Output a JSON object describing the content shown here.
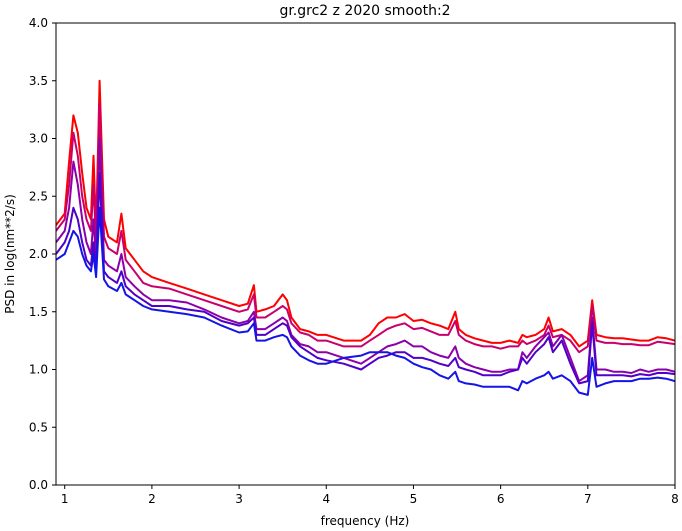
{
  "chart_data": {
    "type": "line",
    "title": "gr.grc2 z 2020 smooth:2",
    "xlabel": "frequency (Hz)",
    "ylabel": "PSD in log(nm**2/s)",
    "xlim": [
      0.9,
      8.0
    ],
    "ylim": [
      0.0,
      4.0
    ],
    "xticks": [
      "1",
      "2",
      "3",
      "4",
      "5",
      "6",
      "7",
      "8"
    ],
    "yticks": [
      "0.0",
      "0.5",
      "1.0",
      "1.5",
      "2.0",
      "2.5",
      "3.0",
      "3.5",
      "4.0"
    ],
    "grid": false,
    "legend": "none",
    "series": [
      {
        "color": "#ff0000",
        "x": [
          0.9,
          1.0,
          1.05,
          1.1,
          1.15,
          1.2,
          1.25,
          1.3,
          1.33,
          1.36,
          1.4,
          1.45,
          1.5,
          1.6,
          1.65,
          1.7,
          1.8,
          1.9,
          2.0,
          2.2,
          2.4,
          2.6,
          2.8,
          3.0,
          3.1,
          3.17,
          3.2,
          3.3,
          3.4,
          3.5,
          3.55,
          3.6,
          3.7,
          3.8,
          3.9,
          4.0,
          4.2,
          4.4,
          4.5,
          4.6,
          4.7,
          4.8,
          4.9,
          5.0,
          5.1,
          5.2,
          5.3,
          5.4,
          5.48,
          5.52,
          5.6,
          5.7,
          5.8,
          5.9,
          6.0,
          6.1,
          6.2,
          6.25,
          6.3,
          6.4,
          6.5,
          6.55,
          6.6,
          6.7,
          6.8,
          6.9,
          7.0,
          7.05,
          7.1,
          7.2,
          7.3,
          7.4,
          7.5,
          7.6,
          7.7,
          7.8,
          7.9,
          8.0
        ],
        "y": [
          2.25,
          2.35,
          2.8,
          3.2,
          3.05,
          2.7,
          2.4,
          2.3,
          2.85,
          2.2,
          3.5,
          2.3,
          2.15,
          2.1,
          2.35,
          2.05,
          1.95,
          1.85,
          1.8,
          1.75,
          1.7,
          1.65,
          1.6,
          1.55,
          1.57,
          1.73,
          1.5,
          1.52,
          1.55,
          1.65,
          1.6,
          1.45,
          1.35,
          1.33,
          1.3,
          1.3,
          1.25,
          1.25,
          1.3,
          1.4,
          1.45,
          1.45,
          1.48,
          1.42,
          1.43,
          1.4,
          1.38,
          1.35,
          1.5,
          1.35,
          1.3,
          1.27,
          1.25,
          1.23,
          1.23,
          1.25,
          1.23,
          1.3,
          1.28,
          1.3,
          1.35,
          1.45,
          1.33,
          1.35,
          1.3,
          1.2,
          1.25,
          1.6,
          1.3,
          1.28,
          1.27,
          1.27,
          1.26,
          1.25,
          1.25,
          1.28,
          1.27,
          1.25
        ]
      },
      {
        "color": "#c8006e",
        "x": [
          0.9,
          1.0,
          1.05,
          1.1,
          1.15,
          1.2,
          1.25,
          1.3,
          1.33,
          1.36,
          1.4,
          1.45,
          1.5,
          1.6,
          1.65,
          1.7,
          1.8,
          1.9,
          2.0,
          2.2,
          2.4,
          2.6,
          2.8,
          3.0,
          3.1,
          3.17,
          3.2,
          3.3,
          3.4,
          3.5,
          3.55,
          3.6,
          3.7,
          3.8,
          3.9,
          4.0,
          4.2,
          4.4,
          4.5,
          4.6,
          4.7,
          4.8,
          4.9,
          5.0,
          5.1,
          5.2,
          5.3,
          5.4,
          5.48,
          5.52,
          5.6,
          5.7,
          5.8,
          5.9,
          6.0,
          6.1,
          6.2,
          6.25,
          6.3,
          6.4,
          6.5,
          6.55,
          6.6,
          6.7,
          6.8,
          6.9,
          7.0,
          7.05,
          7.1,
          7.2,
          7.3,
          7.4,
          7.5,
          7.6,
          7.7,
          7.8,
          7.9,
          8.0
        ],
        "y": [
          2.2,
          2.3,
          2.6,
          3.05,
          2.85,
          2.5,
          2.3,
          2.2,
          2.6,
          2.1,
          3.3,
          2.15,
          2.05,
          2.0,
          2.2,
          1.95,
          1.85,
          1.75,
          1.72,
          1.7,
          1.65,
          1.6,
          1.55,
          1.5,
          1.52,
          1.65,
          1.45,
          1.45,
          1.5,
          1.55,
          1.52,
          1.4,
          1.32,
          1.3,
          1.25,
          1.25,
          1.2,
          1.2,
          1.25,
          1.3,
          1.35,
          1.38,
          1.4,
          1.35,
          1.36,
          1.33,
          1.3,
          1.3,
          1.42,
          1.3,
          1.25,
          1.22,
          1.2,
          1.2,
          1.18,
          1.2,
          1.2,
          1.25,
          1.22,
          1.25,
          1.3,
          1.38,
          1.28,
          1.3,
          1.25,
          1.15,
          1.2,
          1.55,
          1.25,
          1.23,
          1.23,
          1.22,
          1.22,
          1.21,
          1.21,
          1.24,
          1.23,
          1.22
        ]
      },
      {
        "color": "#8c00aa",
        "x": [
          0.9,
          1.0,
          1.05,
          1.1,
          1.15,
          1.2,
          1.25,
          1.3,
          1.33,
          1.36,
          1.4,
          1.45,
          1.5,
          1.6,
          1.65,
          1.7,
          1.8,
          1.9,
          2.0,
          2.2,
          2.4,
          2.6,
          2.8,
          3.0,
          3.1,
          3.17,
          3.2,
          3.3,
          3.4,
          3.5,
          3.55,
          3.6,
          3.7,
          3.8,
          3.9,
          4.0,
          4.2,
          4.4,
          4.5,
          4.6,
          4.7,
          4.8,
          4.9,
          5.0,
          5.1,
          5.2,
          5.3,
          5.4,
          5.48,
          5.52,
          5.6,
          5.7,
          5.8,
          5.9,
          6.0,
          6.1,
          6.2,
          6.25,
          6.3,
          6.4,
          6.5,
          6.55,
          6.6,
          6.7,
          6.8,
          6.9,
          7.0,
          7.05,
          7.1,
          7.2,
          7.3,
          7.4,
          7.5,
          7.6,
          7.7,
          7.8,
          7.9,
          8.0
        ],
        "y": [
          2.1,
          2.2,
          2.4,
          2.8,
          2.6,
          2.3,
          2.1,
          2.0,
          2.3,
          1.95,
          3.0,
          1.95,
          1.9,
          1.85,
          2.0,
          1.8,
          1.72,
          1.65,
          1.6,
          1.6,
          1.58,
          1.52,
          1.45,
          1.4,
          1.42,
          1.5,
          1.35,
          1.35,
          1.4,
          1.45,
          1.42,
          1.3,
          1.22,
          1.2,
          1.15,
          1.15,
          1.1,
          1.05,
          1.1,
          1.15,
          1.2,
          1.22,
          1.25,
          1.2,
          1.2,
          1.15,
          1.12,
          1.1,
          1.2,
          1.1,
          1.05,
          1.02,
          1.0,
          0.98,
          0.98,
          1.0,
          1.0,
          1.15,
          1.1,
          1.2,
          1.28,
          1.32,
          1.2,
          1.3,
          1.1,
          0.9,
          0.95,
          1.45,
          1.0,
          1.0,
          0.98,
          0.98,
          0.97,
          1.0,
          0.98,
          1.0,
          1.0,
          0.98
        ]
      },
      {
        "color": "#5000c8",
        "x": [
          0.9,
          1.0,
          1.05,
          1.1,
          1.15,
          1.2,
          1.25,
          1.3,
          1.33,
          1.36,
          1.4,
          1.45,
          1.5,
          1.6,
          1.65,
          1.7,
          1.8,
          1.9,
          2.0,
          2.2,
          2.4,
          2.6,
          2.8,
          3.0,
          3.1,
          3.17,
          3.2,
          3.3,
          3.4,
          3.5,
          3.55,
          3.6,
          3.7,
          3.8,
          3.9,
          4.0,
          4.2,
          4.4,
          4.5,
          4.6,
          4.7,
          4.8,
          4.9,
          5.0,
          5.1,
          5.2,
          5.3,
          5.4,
          5.48,
          5.52,
          5.6,
          5.7,
          5.8,
          5.9,
          6.0,
          6.1,
          6.2,
          6.25,
          6.3,
          6.4,
          6.5,
          6.55,
          6.6,
          6.7,
          6.8,
          6.9,
          7.0,
          7.05,
          7.1,
          7.2,
          7.3,
          7.4,
          7.5,
          7.6,
          7.7,
          7.8,
          7.9,
          8.0
        ],
        "y": [
          2.0,
          2.1,
          2.2,
          2.4,
          2.3,
          2.1,
          1.95,
          1.9,
          2.1,
          1.85,
          2.7,
          1.85,
          1.8,
          1.75,
          1.85,
          1.72,
          1.65,
          1.6,
          1.55,
          1.55,
          1.52,
          1.5,
          1.42,
          1.38,
          1.4,
          1.45,
          1.3,
          1.3,
          1.35,
          1.4,
          1.38,
          1.28,
          1.2,
          1.15,
          1.1,
          1.08,
          1.05,
          1.0,
          1.05,
          1.1,
          1.12,
          1.15,
          1.15,
          1.1,
          1.1,
          1.08,
          1.05,
          1.03,
          1.1,
          1.02,
          1.0,
          0.98,
          0.95,
          0.95,
          0.95,
          0.98,
          1.0,
          1.1,
          1.05,
          1.15,
          1.22,
          1.28,
          1.15,
          1.25,
          1.05,
          0.88,
          0.9,
          1.4,
          0.95,
          0.95,
          0.95,
          0.95,
          0.94,
          0.96,
          0.95,
          0.97,
          0.97,
          0.96
        ]
      },
      {
        "color": "#1414e6",
        "x": [
          0.9,
          1.0,
          1.05,
          1.1,
          1.15,
          1.2,
          1.25,
          1.3,
          1.33,
          1.36,
          1.4,
          1.45,
          1.5,
          1.6,
          1.65,
          1.7,
          1.8,
          1.9,
          2.0,
          2.2,
          2.4,
          2.6,
          2.8,
          3.0,
          3.1,
          3.17,
          3.2,
          3.3,
          3.4,
          3.5,
          3.55,
          3.6,
          3.7,
          3.8,
          3.9,
          4.0,
          4.2,
          4.4,
          4.5,
          4.6,
          4.7,
          4.8,
          4.9,
          5.0,
          5.1,
          5.2,
          5.3,
          5.4,
          5.48,
          5.52,
          5.6,
          5.7,
          5.8,
          5.9,
          6.0,
          6.1,
          6.2,
          6.25,
          6.3,
          6.4,
          6.5,
          6.55,
          6.6,
          6.7,
          6.8,
          6.9,
          7.0,
          7.05,
          7.1,
          7.2,
          7.3,
          7.4,
          7.5,
          7.6,
          7.7,
          7.8,
          7.9,
          8.0
        ],
        "y": [
          1.95,
          2.0,
          2.1,
          2.2,
          2.15,
          2.0,
          1.9,
          1.85,
          2.0,
          1.8,
          2.4,
          1.78,
          1.72,
          1.68,
          1.75,
          1.65,
          1.6,
          1.55,
          1.52,
          1.5,
          1.48,
          1.45,
          1.38,
          1.32,
          1.33,
          1.4,
          1.25,
          1.25,
          1.28,
          1.3,
          1.28,
          1.2,
          1.12,
          1.08,
          1.05,
          1.05,
          1.1,
          1.12,
          1.15,
          1.15,
          1.15,
          1.12,
          1.1,
          1.05,
          1.02,
          1.0,
          0.95,
          0.92,
          0.98,
          0.9,
          0.88,
          0.87,
          0.85,
          0.85,
          0.85,
          0.85,
          0.82,
          0.9,
          0.88,
          0.92,
          0.95,
          0.98,
          0.92,
          0.95,
          0.9,
          0.8,
          0.78,
          1.1,
          0.85,
          0.88,
          0.9,
          0.9,
          0.9,
          0.92,
          0.92,
          0.93,
          0.92,
          0.9
        ]
      }
    ]
  }
}
